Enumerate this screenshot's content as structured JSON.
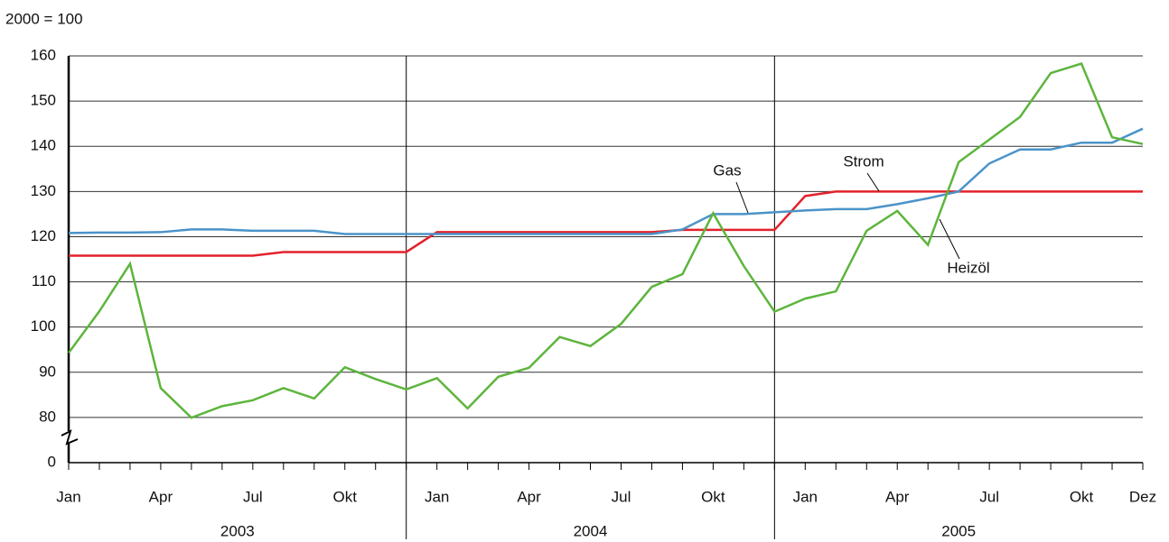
{
  "chart_data": {
    "type": "line",
    "y_label": "2000 = 100",
    "categories": [
      "Jan",
      null,
      null,
      "Apr",
      null,
      null,
      "Jul",
      null,
      null,
      "Okt",
      null,
      null,
      "Jan",
      null,
      null,
      "Apr",
      null,
      null,
      "Jul",
      null,
      null,
      "Okt",
      null,
      null,
      "Jan",
      null,
      null,
      "Apr",
      null,
      null,
      "Jul",
      null,
      null,
      "Okt",
      null,
      "Dez"
    ],
    "years": [
      "2003",
      "2004",
      "2005"
    ],
    "series": [
      {
        "name": "Strom",
        "color": "#e3222b",
        "values": [
          115.8,
          115.8,
          115.8,
          115.8,
          115.8,
          115.8,
          115.8,
          116.6,
          116.6,
          116.6,
          116.6,
          116.6,
          121,
          121,
          121,
          121,
          121,
          121,
          121,
          121,
          121.5,
          121.5,
          121.5,
          121.5,
          129,
          130,
          130,
          130,
          130,
          130,
          130,
          130,
          130,
          130,
          130,
          130
        ]
      },
      {
        "name": "Gas",
        "color": "#4b93c9",
        "values": [
          120.8,
          120.9,
          120.9,
          121,
          121.6,
          121.6,
          121.3,
          121.3,
          121.3,
          120.6,
          120.6,
          120.6,
          120.6,
          120.6,
          120.6,
          120.6,
          120.6,
          120.6,
          120.6,
          120.6,
          121.6,
          125,
          125,
          125.4,
          125.8,
          126.1,
          126.1,
          127.2,
          128.5,
          130,
          136.2,
          139.3,
          139.3,
          140.8,
          140.8,
          143.9
        ]
      },
      {
        "name": "Heizöl",
        "color": "#5db53d",
        "values": [
          94.3,
          103.5,
          114,
          86.5,
          79.5,
          82.5,
          83.8,
          86.5,
          84.2,
          91.1,
          88.5,
          86.2,
          88.7,
          82,
          89,
          91,
          97.8,
          95.8,
          100.7,
          108.9,
          111.7,
          125.2,
          113.5,
          103.4,
          106.3,
          107.9,
          121.3,
          125.7,
          118.2,
          136.5,
          141.5,
          146.5,
          156.2,
          158.3,
          142,
          140.5
        ]
      }
    ],
    "ylim": [
      0,
      160
    ],
    "yticks": [
      0,
      80,
      90,
      100,
      110,
      120,
      130,
      140,
      150,
      160
    ],
    "axis_break": true,
    "grid": true
  }
}
